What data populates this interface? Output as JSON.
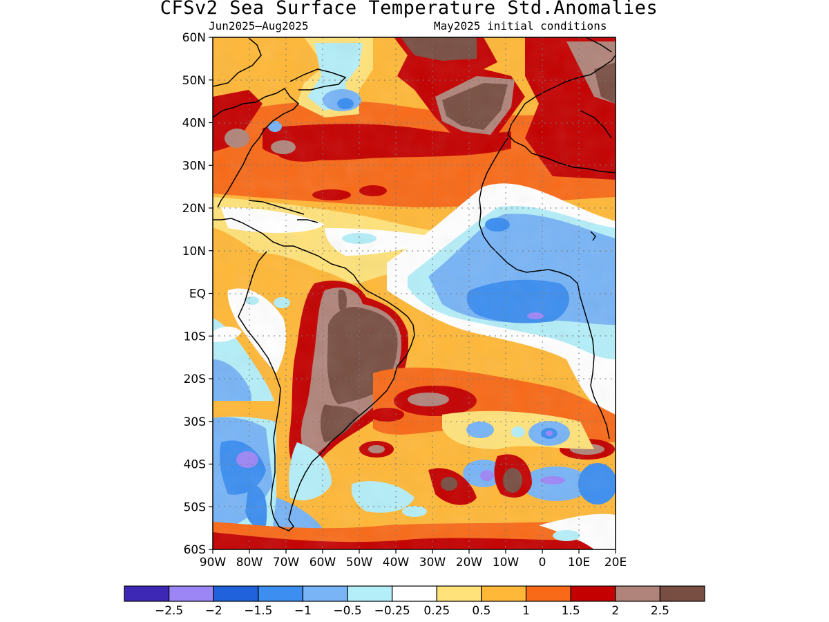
{
  "title": "CFSv2 Sea Surface Temperature Std.Anomalies",
  "subtitle_left": "Jun2025–Aug2025",
  "subtitle_right": "May2025 initial conditions",
  "lat_labels": [
    "60N",
    "50N",
    "40N",
    "30N",
    "20N",
    "10N",
    "EQ",
    "10S",
    "20S",
    "30S",
    "40S",
    "50S",
    "60S"
  ],
  "lon_labels": [
    "90W",
    "80W",
    "70W",
    "60W",
    "50W",
    "40W",
    "30W",
    "20W",
    "10W",
    "0",
    "10E",
    "20E"
  ],
  "colorbar": {
    "colors": [
      "#3c28b4",
      "#9c86f6",
      "#1f62dc",
      "#3c8ef0",
      "#78b4f6",
      "#b4eef8",
      "#ffffff",
      "#ffe27a",
      "#ffb838",
      "#f86a18",
      "#c40000",
      "#b0847a",
      "#784e42"
    ],
    "labels": [
      "−2.5",
      "−2",
      "−1.5",
      "−1",
      "−0.5",
      "−0.25",
      "0.25",
      "0.5",
      "1",
      "1.5",
      "2",
      "2.5"
    ]
  },
  "legend_meaning": {
    "cold_colors": "negative standardized anomalies",
    "warm_colors": "positive standardized anomalies"
  }
}
